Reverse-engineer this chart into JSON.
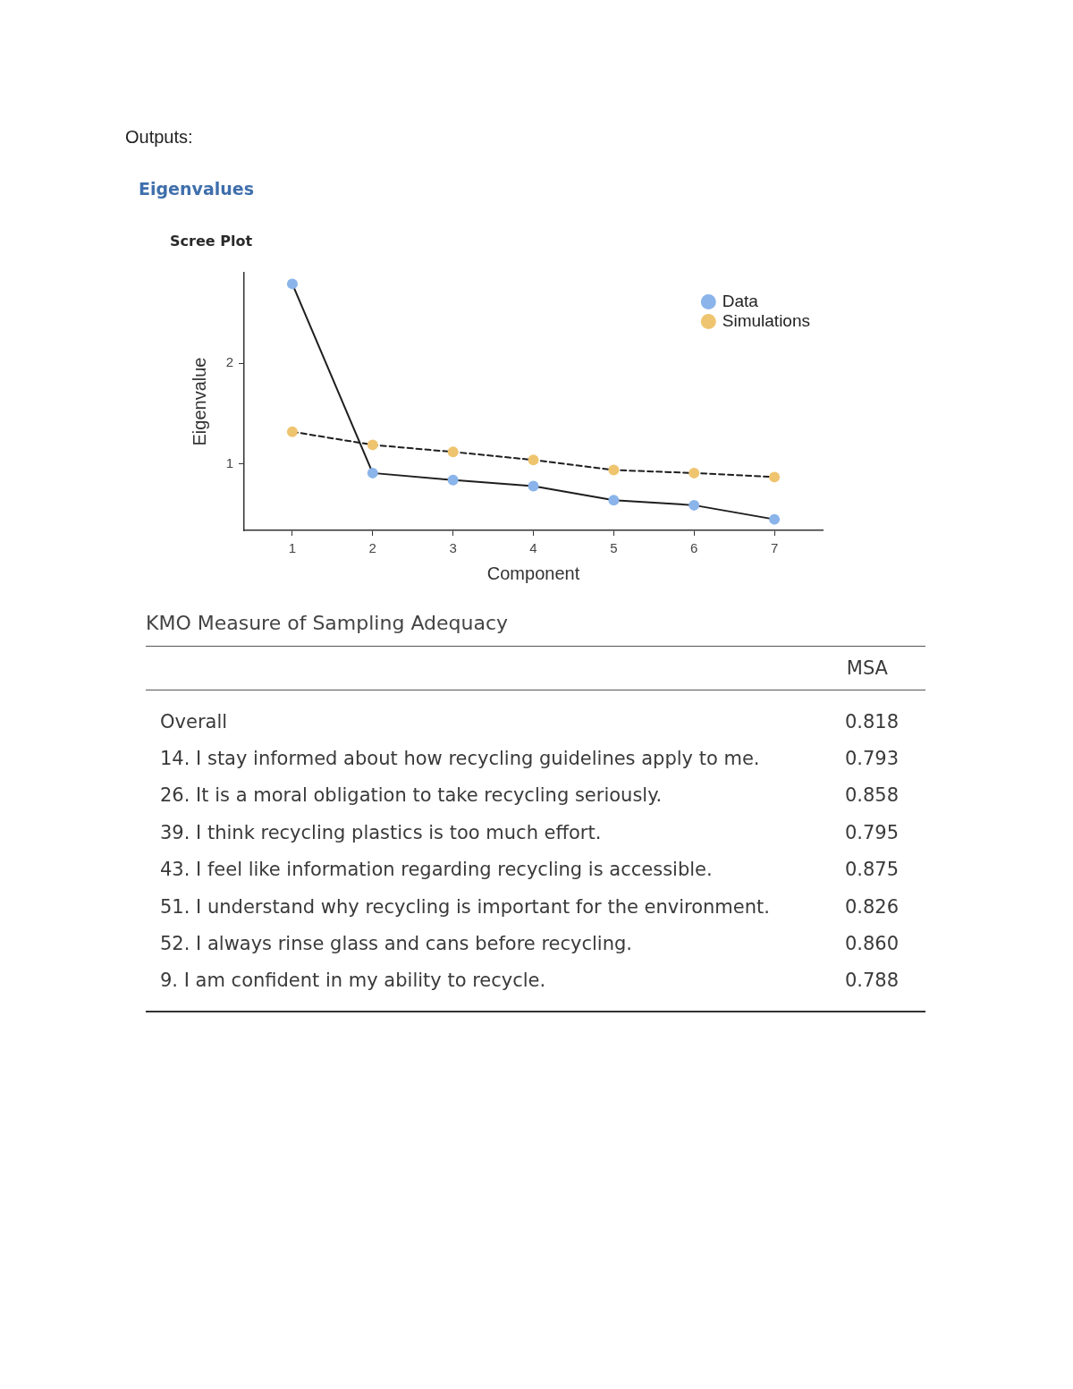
{
  "chart_data": [
    {
      "type": "line",
      "annotations": [
        "Outputs:"
      ],
      "title": "Eigenvalues",
      "subtitle": "Scree Plot",
      "xlabel": "Component",
      "ylabel": "Eigenvalue",
      "x": [
        1,
        2,
        3,
        4,
        5,
        6,
        7
      ],
      "series": [
        {
          "name": "Data",
          "color": "#8ab4ea",
          "line_style": "solid",
          "values": [
            2.79,
            0.91,
            0.84,
            0.78,
            0.64,
            0.59,
            0.45
          ]
        },
        {
          "name": "Simulations",
          "color": "#efc46f",
          "line_style": "dashed",
          "values": [
            1.32,
            1.19,
            1.12,
            1.04,
            0.94,
            0.91,
            0.87
          ]
        }
      ],
      "xlim": [
        0.4,
        7.6
      ],
      "xticks": [
        1,
        2,
        3,
        4,
        5,
        6,
        7
      ],
      "ylim": [
        0.34,
        2.9
      ],
      "yticks": [
        1,
        2
      ],
      "grid": false,
      "legend": "top right",
      "marker": "circle"
    },
    {
      "type": "other",
      "title": "KMO Measure of Sampling Adequacy",
      "categories": [
        "Overall",
        "14. I stay informed about how recycling guidelines apply to me.",
        "26. It is a moral obligation to take recycling seriously.",
        "39. I think recycling plastics is too much effort.",
        "43. I feel like information regarding recycling is accessible.",
        "51. I understand why recycling is important for the environment.",
        "52. I always rinse glass and cans before recycling.",
        "9. I am confident in my ability to recycle."
      ],
      "series": [
        {
          "name": "MSA",
          "values": [
            0.818,
            0.793,
            0.858,
            0.795,
            0.875,
            0.826,
            0.86,
            0.788
          ],
          "value_labels": [
            "0.818",
            "0.793",
            "0.858",
            "0.795",
            "0.875",
            "0.826",
            "0.860",
            "0.788"
          ]
        }
      ]
    }
  ]
}
